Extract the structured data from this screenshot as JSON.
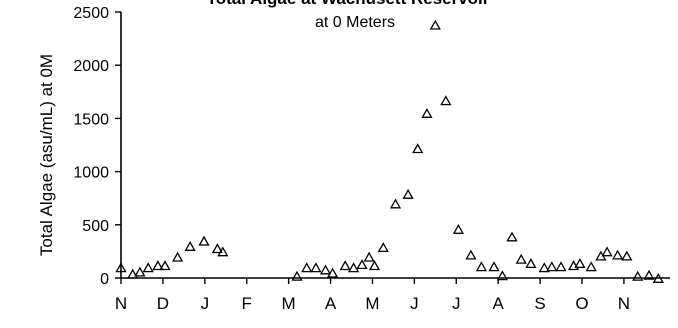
{
  "chart_data": {
    "type": "scatter",
    "title": "Total Algae at Wachusett Reservoir",
    "subtitle": "at 0 Meters",
    "ylabel": "Total Algae  (asu/mL) at 0M",
    "xlabel": "",
    "ylim": [
      0,
      2500
    ],
    "yticks": [
      0,
      500,
      1000,
      1500,
      2000,
      2500
    ],
    "x_tick_labels": [
      "N",
      "D",
      "J",
      "F",
      "M",
      "A",
      "M",
      "J",
      "J",
      "A",
      "S",
      "O",
      "N"
    ],
    "xlim": [
      0,
      13.1
    ],
    "grid": false,
    "marker": "triangle",
    "series": [
      {
        "x": [
          0.0,
          0.28,
          0.45,
          0.65,
          0.88,
          1.05,
          1.35,
          1.65,
          1.98,
          2.3,
          2.43,
          4.2,
          4.43,
          4.65,
          4.88,
          5.05,
          5.35,
          5.55,
          5.75,
          5.92,
          6.05,
          6.26,
          6.55,
          6.85,
          7.08,
          7.3,
          7.5,
          7.75,
          8.05,
          8.35,
          8.6,
          8.9,
          9.1,
          9.33,
          9.55,
          9.78,
          10.1,
          10.28,
          10.5,
          10.8,
          10.95,
          11.22,
          11.45,
          11.6,
          11.85,
          12.07,
          12.33,
          12.6,
          12.82
        ],
        "y": [
          90,
          30,
          50,
          90,
          110,
          110,
          190,
          290,
          340,
          270,
          240,
          10,
          90,
          90,
          70,
          40,
          110,
          90,
          120,
          190,
          110,
          280,
          690,
          780,
          1210,
          1540,
          2370,
          1660,
          450,
          210,
          100,
          100,
          15,
          380,
          170,
          130,
          90,
          100,
          100,
          110,
          130,
          100,
          200,
          240,
          210,
          200,
          10,
          20,
          -10
        ]
      }
    ]
  }
}
